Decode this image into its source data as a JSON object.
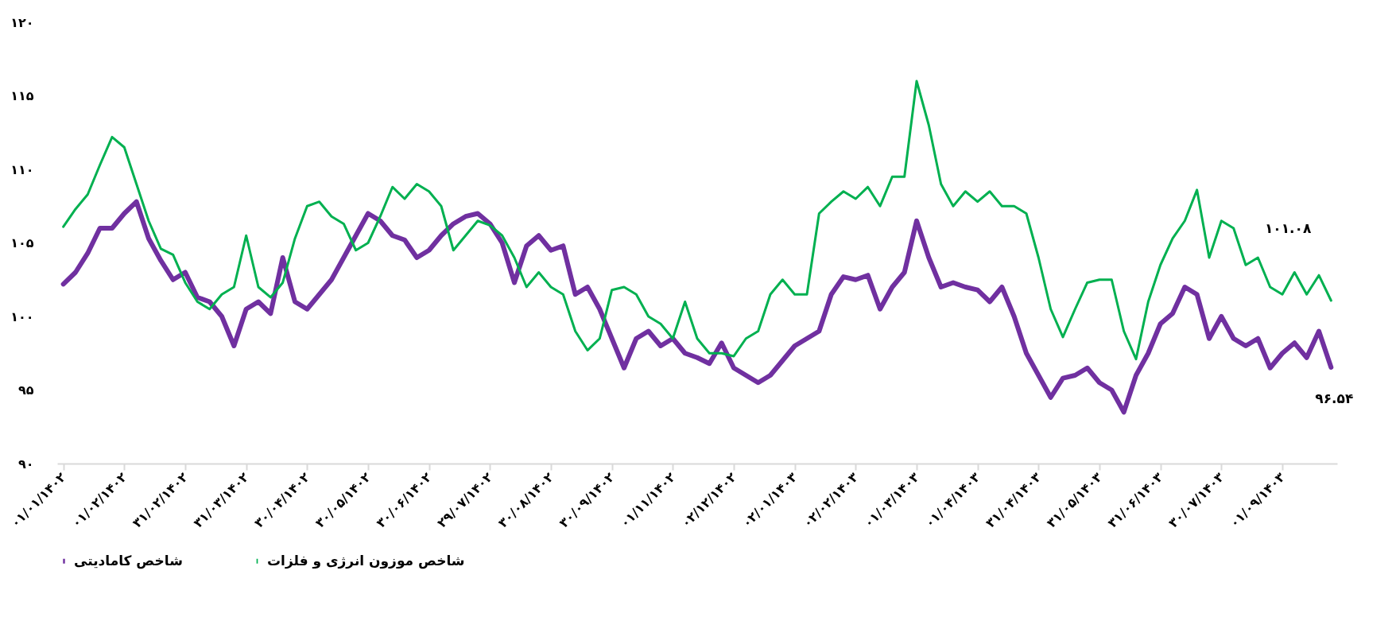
{
  "chart_data": {
    "type": "line",
    "categories": [
      "۰۱/۰۱/۱۴۰۲",
      null,
      null,
      null,
      null,
      "۰۱/۰۲/۱۴۰۲",
      null,
      null,
      null,
      null,
      "۳۱/۰۲/۱۴۰۲",
      null,
      null,
      null,
      null,
      "۳۱/۰۳/۱۴۰۲",
      null,
      null,
      null,
      null,
      "۳۰/۰۴/۱۴۰۲",
      null,
      null,
      null,
      null,
      "۳۰/۰۵/۱۴۰۲",
      null,
      null,
      null,
      null,
      "۳۰/۰۶/۱۴۰۲",
      null,
      null,
      null,
      null,
      "۲۹/۰۷/۱۴۰۲",
      null,
      null,
      null,
      null,
      "۳۰/۰۸/۱۴۰۲",
      null,
      null,
      null,
      null,
      "۳۰/۰۹/۱۴۰۲",
      null,
      null,
      null,
      null,
      "۰۱/۱۱/۱۴۰۲",
      null,
      null,
      null,
      null,
      "۰۲/۱۲/۱۴۰۲",
      null,
      null,
      null,
      null,
      "۰۲/۰۱/۱۴۰۳",
      null,
      null,
      null,
      null,
      "۰۲/۰۲/۱۴۰۳",
      null,
      null,
      null,
      null,
      "۰۱/۰۳/۱۴۰۳",
      null,
      null,
      null,
      null,
      "۰۱/۰۴/۱۴۰۳",
      null,
      null,
      null,
      null,
      "۳۱/۰۴/۱۴۰۳",
      null,
      null,
      null,
      null,
      "۳۱/۰۵/۱۴۰۳",
      null,
      null,
      null,
      null,
      "۳۱/۰۶/۱۴۰۳",
      null,
      null,
      null,
      null,
      "۳۰/۰۷/۱۴۰۳",
      null,
      null,
      null,
      null,
      "۰۱/۰۹/۱۴۰۳",
      null,
      null,
      null,
      null
    ],
    "series": [
      {
        "name": "شاخص کامادیتی",
        "color": "#7030a0",
        "values": [
          102.2,
          103,
          104.3,
          106,
          106,
          107,
          107.8,
          105.3,
          103.8,
          102.5,
          103,
          101.3,
          101,
          100,
          98,
          100.5,
          101,
          100.2,
          104,
          101,
          100.5,
          101.5,
          102.5,
          104,
          105.5,
          107,
          106.5,
          105.5,
          105.2,
          104,
          104.5,
          105.5,
          106.3,
          106.8,
          107,
          106.3,
          105,
          102.3,
          104.8,
          105.5,
          104.5,
          104.8,
          101.5,
          102,
          100.5,
          98.5,
          96.5,
          98.5,
          99,
          98,
          98.5,
          97.5,
          97.2,
          96.8,
          98.2,
          96.5,
          96,
          95.5,
          96,
          97,
          98,
          98.5,
          99,
          101.5,
          102.7,
          102.5,
          102.8,
          100.5,
          102,
          103,
          106.5,
          104,
          102,
          102.3,
          102,
          101.8,
          101,
          102,
          100,
          97.5,
          96,
          94.5,
          95.8,
          96,
          96.5,
          95.5,
          95,
          93.5,
          96,
          97.5,
          99.5,
          100.2,
          102,
          101.5,
          98.5,
          100,
          98.5,
          98,
          98.5,
          96.5,
          97.5,
          98.2,
          97.2,
          99,
          96.54
        ]
      },
      {
        "name": "شاخص موزون انرژی و فلزات",
        "color": "#00b050",
        "values": [
          106.1,
          107.3,
          108.3,
          110.3,
          112.2,
          111.5,
          109,
          106.5,
          104.6,
          104.2,
          102.3,
          101,
          100.5,
          101.5,
          102,
          105.5,
          102,
          101.3,
          102.3,
          105.3,
          107.5,
          107.8,
          106.8,
          106.3,
          104.5,
          105,
          106.8,
          108.8,
          108,
          109,
          108.5,
          107.5,
          104.5,
          105.5,
          106.5,
          106.2,
          105.5,
          104,
          102,
          103,
          102,
          101.5,
          99,
          97.7,
          98.5,
          101.8,
          102,
          101.5,
          100,
          99.5,
          98.5,
          101,
          98.5,
          97.5,
          97.5,
          97.3,
          98.5,
          99,
          101.5,
          102.5,
          101.5,
          101.5,
          107,
          107.8,
          108.5,
          108,
          108.8,
          107.5,
          109.5,
          109.5,
          116,
          113,
          109,
          107.5,
          108.5,
          107.8,
          108.5,
          107.5,
          107.5,
          107,
          104,
          100.5,
          98.6,
          100.5,
          102.3,
          102.5,
          102.5,
          99,
          97.1,
          101,
          103.5,
          105.3,
          106.5,
          108.6,
          104,
          106.5,
          106,
          103.5,
          104,
          102,
          101.5,
          103,
          101.5,
          102.8,
          101.08
        ]
      }
    ],
    "ylim": [
      90,
      120
    ],
    "yticks": [
      {
        "value": 90,
        "label": "۹۰"
      },
      {
        "value": 95,
        "label": "۹۵"
      },
      {
        "value": 100,
        "label": "۱۰۰"
      },
      {
        "value": 105,
        "label": "۱۰۵"
      },
      {
        "value": 110,
        "label": "۱۱۰"
      },
      {
        "value": 115,
        "label": "۱۱۵"
      },
      {
        "value": 120,
        "label": "۱۲۰"
      }
    ],
    "annotations": [
      "۱۰۱.۰۸",
      "۹۶.۵۴"
    ],
    "legend": "bottom",
    "grid": false
  }
}
